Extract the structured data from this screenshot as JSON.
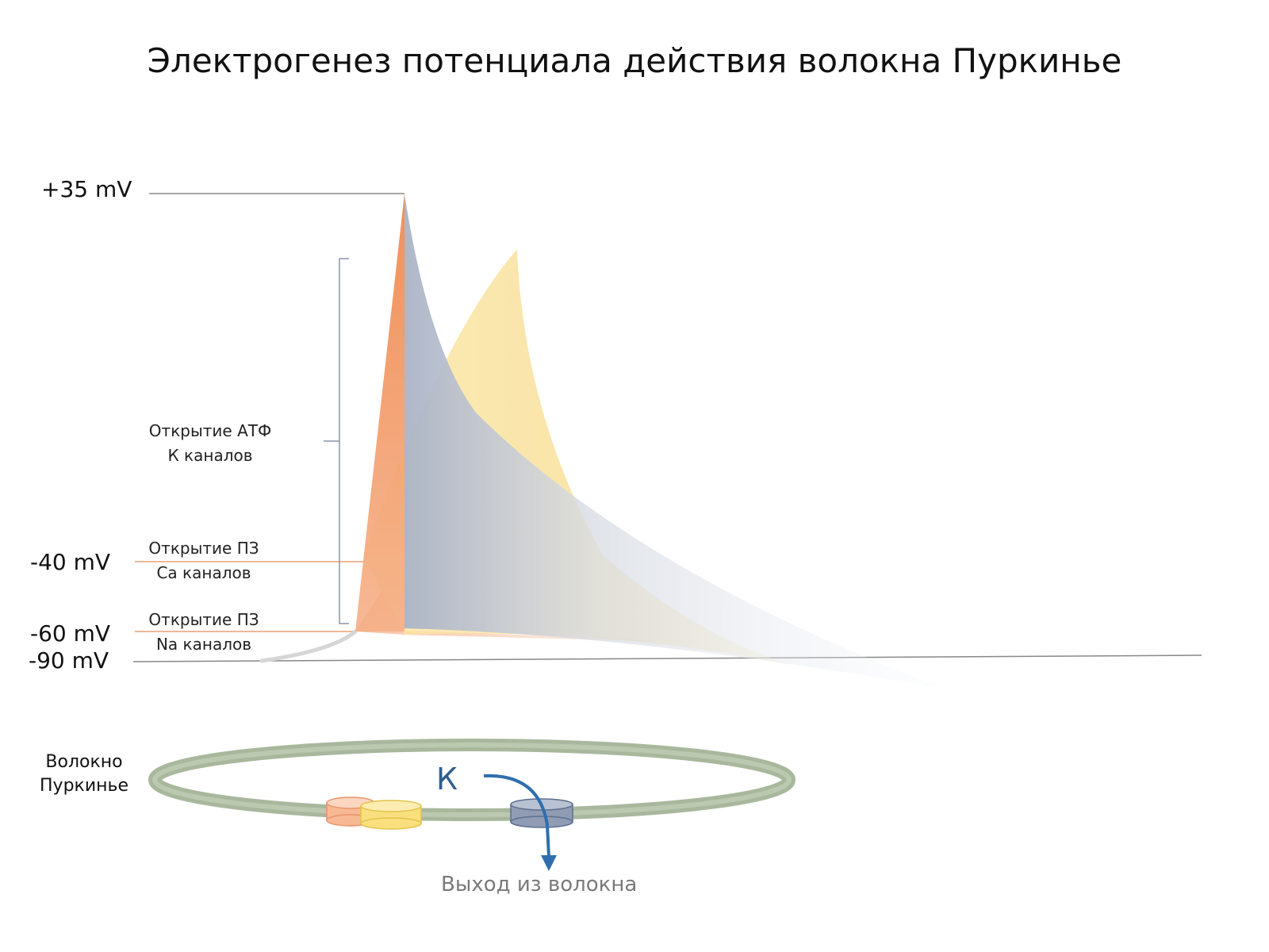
{
  "title": "Электрогенез потенциала действия волокна Пуркинье",
  "levels": {
    "plus35": "+35 mV",
    "minus40": "-40 mV",
    "minus60": "-60 mV",
    "minus90": "-90 mV"
  },
  "annotations": {
    "k_atp_line1": "Открытие АТФ",
    "k_atp_line2": "К каналов",
    "ca_line1": "Открытие ПЗ",
    "ca_line2": "Са каналов",
    "na_line1": "Открытие ПЗ",
    "na_line2": "Na каналов"
  },
  "fiber": {
    "label_line1": "Волокно",
    "label_line2": "Пуркинье",
    "ion": "К",
    "exit": "Выход из волокна"
  },
  "colors": {
    "na": "#f0945e",
    "ca": "#f7d98a",
    "k": "#9aa6bd",
    "fiber": "#a9b89d",
    "arrow": "#2f6fad"
  }
}
